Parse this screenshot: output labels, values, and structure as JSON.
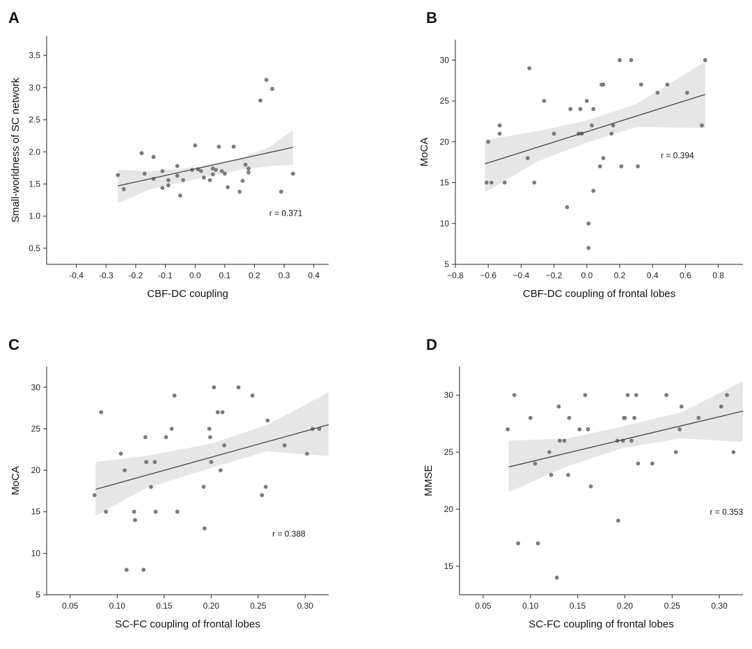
{
  "chart_data": [
    {
      "panel": "A",
      "type": "scatter",
      "xlabel": "CBF-DC coupling",
      "ylabel": "Small-worldness of SC network",
      "xlim": [
        -0.5,
        0.45
      ],
      "ylim": [
        0.25,
        3.8
      ],
      "xticks": [
        -0.4,
        -0.3,
        -0.2,
        -0.1,
        0.0,
        0.1,
        0.2,
        0.3,
        0.4
      ],
      "xtick_labels": [
        "-0.4",
        "-0.3",
        "-0.2",
        "-0.1",
        "0.0",
        "0.1",
        "0.2",
        "0.3",
        "0.4"
      ],
      "yticks": [
        0.5,
        1.0,
        1.5,
        2.0,
        2.5,
        3.0,
        3.5
      ],
      "ytick_labels": [
        "0.5",
        "1.0",
        "1.5",
        "2.0",
        "2.5",
        "3.0",
        "3.5"
      ],
      "annotation": "r = 0.371",
      "annotation_pos": [
        0.25,
        1.0
      ],
      "fit_line": [
        [
          -0.26,
          1.47
        ],
        [
          0.33,
          2.07
        ]
      ],
      "ci_upper": [
        [
          -0.26,
          1.72
        ],
        [
          -0.15,
          1.7
        ],
        [
          0.0,
          1.76
        ],
        [
          0.15,
          1.9
        ],
        [
          0.25,
          2.07
        ],
        [
          0.33,
          2.34
        ]
      ],
      "ci_lower": [
        [
          -0.26,
          1.2
        ],
        [
          -0.15,
          1.42
        ],
        [
          0.0,
          1.57
        ],
        [
          0.15,
          1.72
        ],
        [
          0.25,
          1.78
        ],
        [
          0.33,
          1.8
        ]
      ],
      "points": [
        [
          -0.26,
          1.64
        ],
        [
          -0.24,
          1.42
        ],
        [
          -0.18,
          1.98
        ],
        [
          -0.17,
          1.66
        ],
        [
          -0.14,
          1.92
        ],
        [
          -0.14,
          1.58
        ],
        [
          -0.11,
          1.7
        ],
        [
          -0.11,
          1.44
        ],
        [
          -0.09,
          1.48
        ],
        [
          -0.09,
          1.56
        ],
        [
          -0.06,
          1.63
        ],
        [
          -0.06,
          1.78
        ],
        [
          -0.05,
          1.32
        ],
        [
          -0.04,
          1.56
        ],
        [
          -0.01,
          1.72
        ],
        [
          0.0,
          2.1
        ],
        [
          0.01,
          1.73
        ],
        [
          0.02,
          1.7
        ],
        [
          0.03,
          1.6
        ],
        [
          0.05,
          1.56
        ],
        [
          0.06,
          1.74
        ],
        [
          0.06,
          1.65
        ],
        [
          0.07,
          1.72
        ],
        [
          0.08,
          2.08
        ],
        [
          0.09,
          1.7
        ],
        [
          0.1,
          1.66
        ],
        [
          0.11,
          1.45
        ],
        [
          0.13,
          2.08
        ],
        [
          0.15,
          1.38
        ],
        [
          0.16,
          1.55
        ],
        [
          0.17,
          1.8
        ],
        [
          0.18,
          1.68
        ],
        [
          0.18,
          1.74
        ],
        [
          0.22,
          2.8
        ],
        [
          0.24,
          3.12
        ],
        [
          0.26,
          2.98
        ],
        [
          0.29,
          1.38
        ],
        [
          0.33,
          1.66
        ]
      ]
    },
    {
      "panel": "B",
      "type": "scatter",
      "xlabel": "CBF-DC coupling of frontal lobes",
      "ylabel": "MoCA",
      "xlim": [
        -0.8,
        0.95
      ],
      "ylim": [
        5,
        32.5
      ],
      "xticks": [
        -0.8,
        -0.6,
        -0.4,
        -0.2,
        0.0,
        0.2,
        0.4,
        0.6,
        0.8
      ],
      "xtick_labels": [
        "−0.8",
        "−0.6",
        "−0.4",
        "−0.2",
        "0.0",
        "0.2",
        "0.4",
        "0.6",
        "0.8"
      ],
      "yticks": [
        5,
        10,
        15,
        20,
        25,
        30
      ],
      "ytick_labels": [
        "5",
        "10",
        "15",
        "20",
        "25",
        "30"
      ],
      "annotation": "r = 0.394",
      "annotation_pos": [
        0.45,
        18.0
      ],
      "fit_line": [
        [
          -0.62,
          17.3
        ],
        [
          0.72,
          25.8
        ]
      ],
      "ci_upper": [
        [
          -0.62,
          20.2
        ],
        [
          -0.3,
          21.3
        ],
        [
          0.0,
          22.6
        ],
        [
          0.3,
          24.6
        ],
        [
          0.72,
          29.8
        ]
      ],
      "ci_lower": [
        [
          -0.62,
          13.8
        ],
        [
          -0.3,
          17.6
        ],
        [
          0.0,
          19.9
        ],
        [
          0.3,
          21.8
        ],
        [
          0.72,
          21.7
        ]
      ],
      "points": [
        [
          -0.61,
          15
        ],
        [
          -0.6,
          20
        ],
        [
          -0.58,
          15
        ],
        [
          -0.53,
          22
        ],
        [
          -0.53,
          21
        ],
        [
          -0.5,
          15
        ],
        [
          -0.36,
          18
        ],
        [
          -0.35,
          29
        ],
        [
          -0.32,
          15
        ],
        [
          -0.26,
          25
        ],
        [
          -0.2,
          21
        ],
        [
          -0.12,
          12
        ],
        [
          -0.1,
          24
        ],
        [
          -0.05,
          21
        ],
        [
          -0.04,
          24
        ],
        [
          -0.03,
          21
        ],
        [
          0.0,
          25
        ],
        [
          0.01,
          10
        ],
        [
          0.01,
          7
        ],
        [
          0.03,
          22
        ],
        [
          0.04,
          14
        ],
        [
          0.04,
          24
        ],
        [
          0.08,
          17
        ],
        [
          0.09,
          27
        ],
        [
          0.1,
          27
        ],
        [
          0.1,
          18
        ],
        [
          0.15,
          21
        ],
        [
          0.16,
          22
        ],
        [
          0.2,
          30
        ],
        [
          0.21,
          17
        ],
        [
          0.27,
          30
        ],
        [
          0.31,
          17
        ],
        [
          0.33,
          27
        ],
        [
          0.43,
          26
        ],
        [
          0.49,
          27
        ],
        [
          0.61,
          26
        ],
        [
          0.7,
          22
        ],
        [
          0.72,
          30
        ]
      ]
    },
    {
      "panel": "C",
      "type": "scatter",
      "xlabel": "SC-FC coupling of frontal lobes",
      "ylabel": "MoCA",
      "xlim": [
        0.025,
        0.325
      ],
      "ylim": [
        5,
        32.5
      ],
      "xticks": [
        0.05,
        0.1,
        0.15,
        0.2,
        0.25,
        0.3
      ],
      "xtick_labels": [
        "0.05",
        "0.10",
        "0.15",
        "0.20",
        "0.25",
        "0.30"
      ],
      "yticks": [
        5,
        10,
        15,
        20,
        25,
        30
      ],
      "ytick_labels": [
        "5",
        "10",
        "15",
        "20",
        "25",
        "30"
      ],
      "annotation": "r = 0.388",
      "annotation_pos": [
        0.265,
        12.0
      ],
      "fit_line": [
        [
          0.077,
          17.7
        ],
        [
          0.325,
          25.5
        ]
      ],
      "ci_upper": [
        [
          0.077,
          21.0
        ],
        [
          0.13,
          21.7
        ],
        [
          0.2,
          23.2
        ],
        [
          0.26,
          25.5
        ],
        [
          0.325,
          29.4
        ]
      ],
      "ci_lower": [
        [
          0.077,
          14.5
        ],
        [
          0.13,
          17.8
        ],
        [
          0.2,
          20.3
        ],
        [
          0.26,
          22.3
        ],
        [
          0.325,
          21.7
        ]
      ],
      "points": [
        [
          0.076,
          17
        ],
        [
          0.083,
          27
        ],
        [
          0.088,
          15
        ],
        [
          0.104,
          22
        ],
        [
          0.108,
          20
        ],
        [
          0.11,
          8
        ],
        [
          0.118,
          15
        ],
        [
          0.119,
          14
        ],
        [
          0.128,
          8
        ],
        [
          0.13,
          24
        ],
        [
          0.131,
          21
        ],
        [
          0.136,
          18
        ],
        [
          0.14,
          21
        ],
        [
          0.141,
          15
        ],
        [
          0.152,
          24
        ],
        [
          0.158,
          25
        ],
        [
          0.161,
          29
        ],
        [
          0.164,
          15
        ],
        [
          0.192,
          18
        ],
        [
          0.193,
          13
        ],
        [
          0.198,
          25
        ],
        [
          0.199,
          24
        ],
        [
          0.2,
          21
        ],
        [
          0.203,
          30
        ],
        [
          0.207,
          27
        ],
        [
          0.21,
          20
        ],
        [
          0.212,
          27
        ],
        [
          0.214,
          23
        ],
        [
          0.229,
          30
        ],
        [
          0.244,
          29
        ],
        [
          0.254,
          17
        ],
        [
          0.258,
          18
        ],
        [
          0.26,
          26
        ],
        [
          0.278,
          23
        ],
        [
          0.302,
          22
        ],
        [
          0.308,
          25
        ],
        [
          0.315,
          25
        ]
      ]
    },
    {
      "panel": "D",
      "type": "scatter",
      "xlabel": "SC-FC coupling of frontal lobes",
      "ylabel": "MMSE",
      "xlim": [
        0.025,
        0.325
      ],
      "ylim": [
        12.5,
        32.5
      ],
      "xticks": [
        0.05,
        0.1,
        0.15,
        0.2,
        0.25,
        0.3
      ],
      "xtick_labels": [
        "0.05",
        "0.10",
        "0.15",
        "0.20",
        "0.25",
        "0.30"
      ],
      "yticks": [
        15,
        20,
        25,
        30
      ],
      "ytick_labels": [
        "15",
        "20",
        "25",
        "30"
      ],
      "annotation": "r = 0.353",
      "annotation_pos": [
        0.29,
        19.5
      ],
      "fit_line": [
        [
          0.077,
          23.7
        ],
        [
          0.325,
          28.6
        ]
      ],
      "ci_upper": [
        [
          0.077,
          26.0
        ],
        [
          0.14,
          26.2
        ],
        [
          0.2,
          27.3
        ],
        [
          0.26,
          28.5
        ],
        [
          0.325,
          31.2
        ]
      ],
      "ci_lower": [
        [
          0.077,
          21.5
        ],
        [
          0.14,
          23.8
        ],
        [
          0.2,
          25.4
        ],
        [
          0.26,
          26.2
        ],
        [
          0.325,
          25.9
        ]
      ],
      "points": [
        [
          0.076,
          27
        ],
        [
          0.083,
          30
        ],
        [
          0.087,
          17
        ],
        [
          0.1,
          28
        ],
        [
          0.105,
          24
        ],
        [
          0.108,
          17
        ],
        [
          0.12,
          25
        ],
        [
          0.122,
          23
        ],
        [
          0.128,
          14
        ],
        [
          0.13,
          29
        ],
        [
          0.131,
          26
        ],
        [
          0.136,
          26
        ],
        [
          0.14,
          23
        ],
        [
          0.141,
          28
        ],
        [
          0.152,
          27
        ],
        [
          0.158,
          30
        ],
        [
          0.161,
          27
        ],
        [
          0.164,
          22
        ],
        [
          0.192,
          26
        ],
        [
          0.193,
          19
        ],
        [
          0.198,
          26
        ],
        [
          0.199,
          28
        ],
        [
          0.2,
          28
        ],
        [
          0.203,
          30
        ],
        [
          0.207,
          26
        ],
        [
          0.21,
          28
        ],
        [
          0.212,
          30
        ],
        [
          0.214,
          24
        ],
        [
          0.229,
          24
        ],
        [
          0.244,
          30
        ],
        [
          0.254,
          25
        ],
        [
          0.258,
          27
        ],
        [
          0.26,
          29
        ],
        [
          0.278,
          28
        ],
        [
          0.302,
          29
        ],
        [
          0.308,
          30
        ],
        [
          0.315,
          25
        ]
      ]
    }
  ]
}
